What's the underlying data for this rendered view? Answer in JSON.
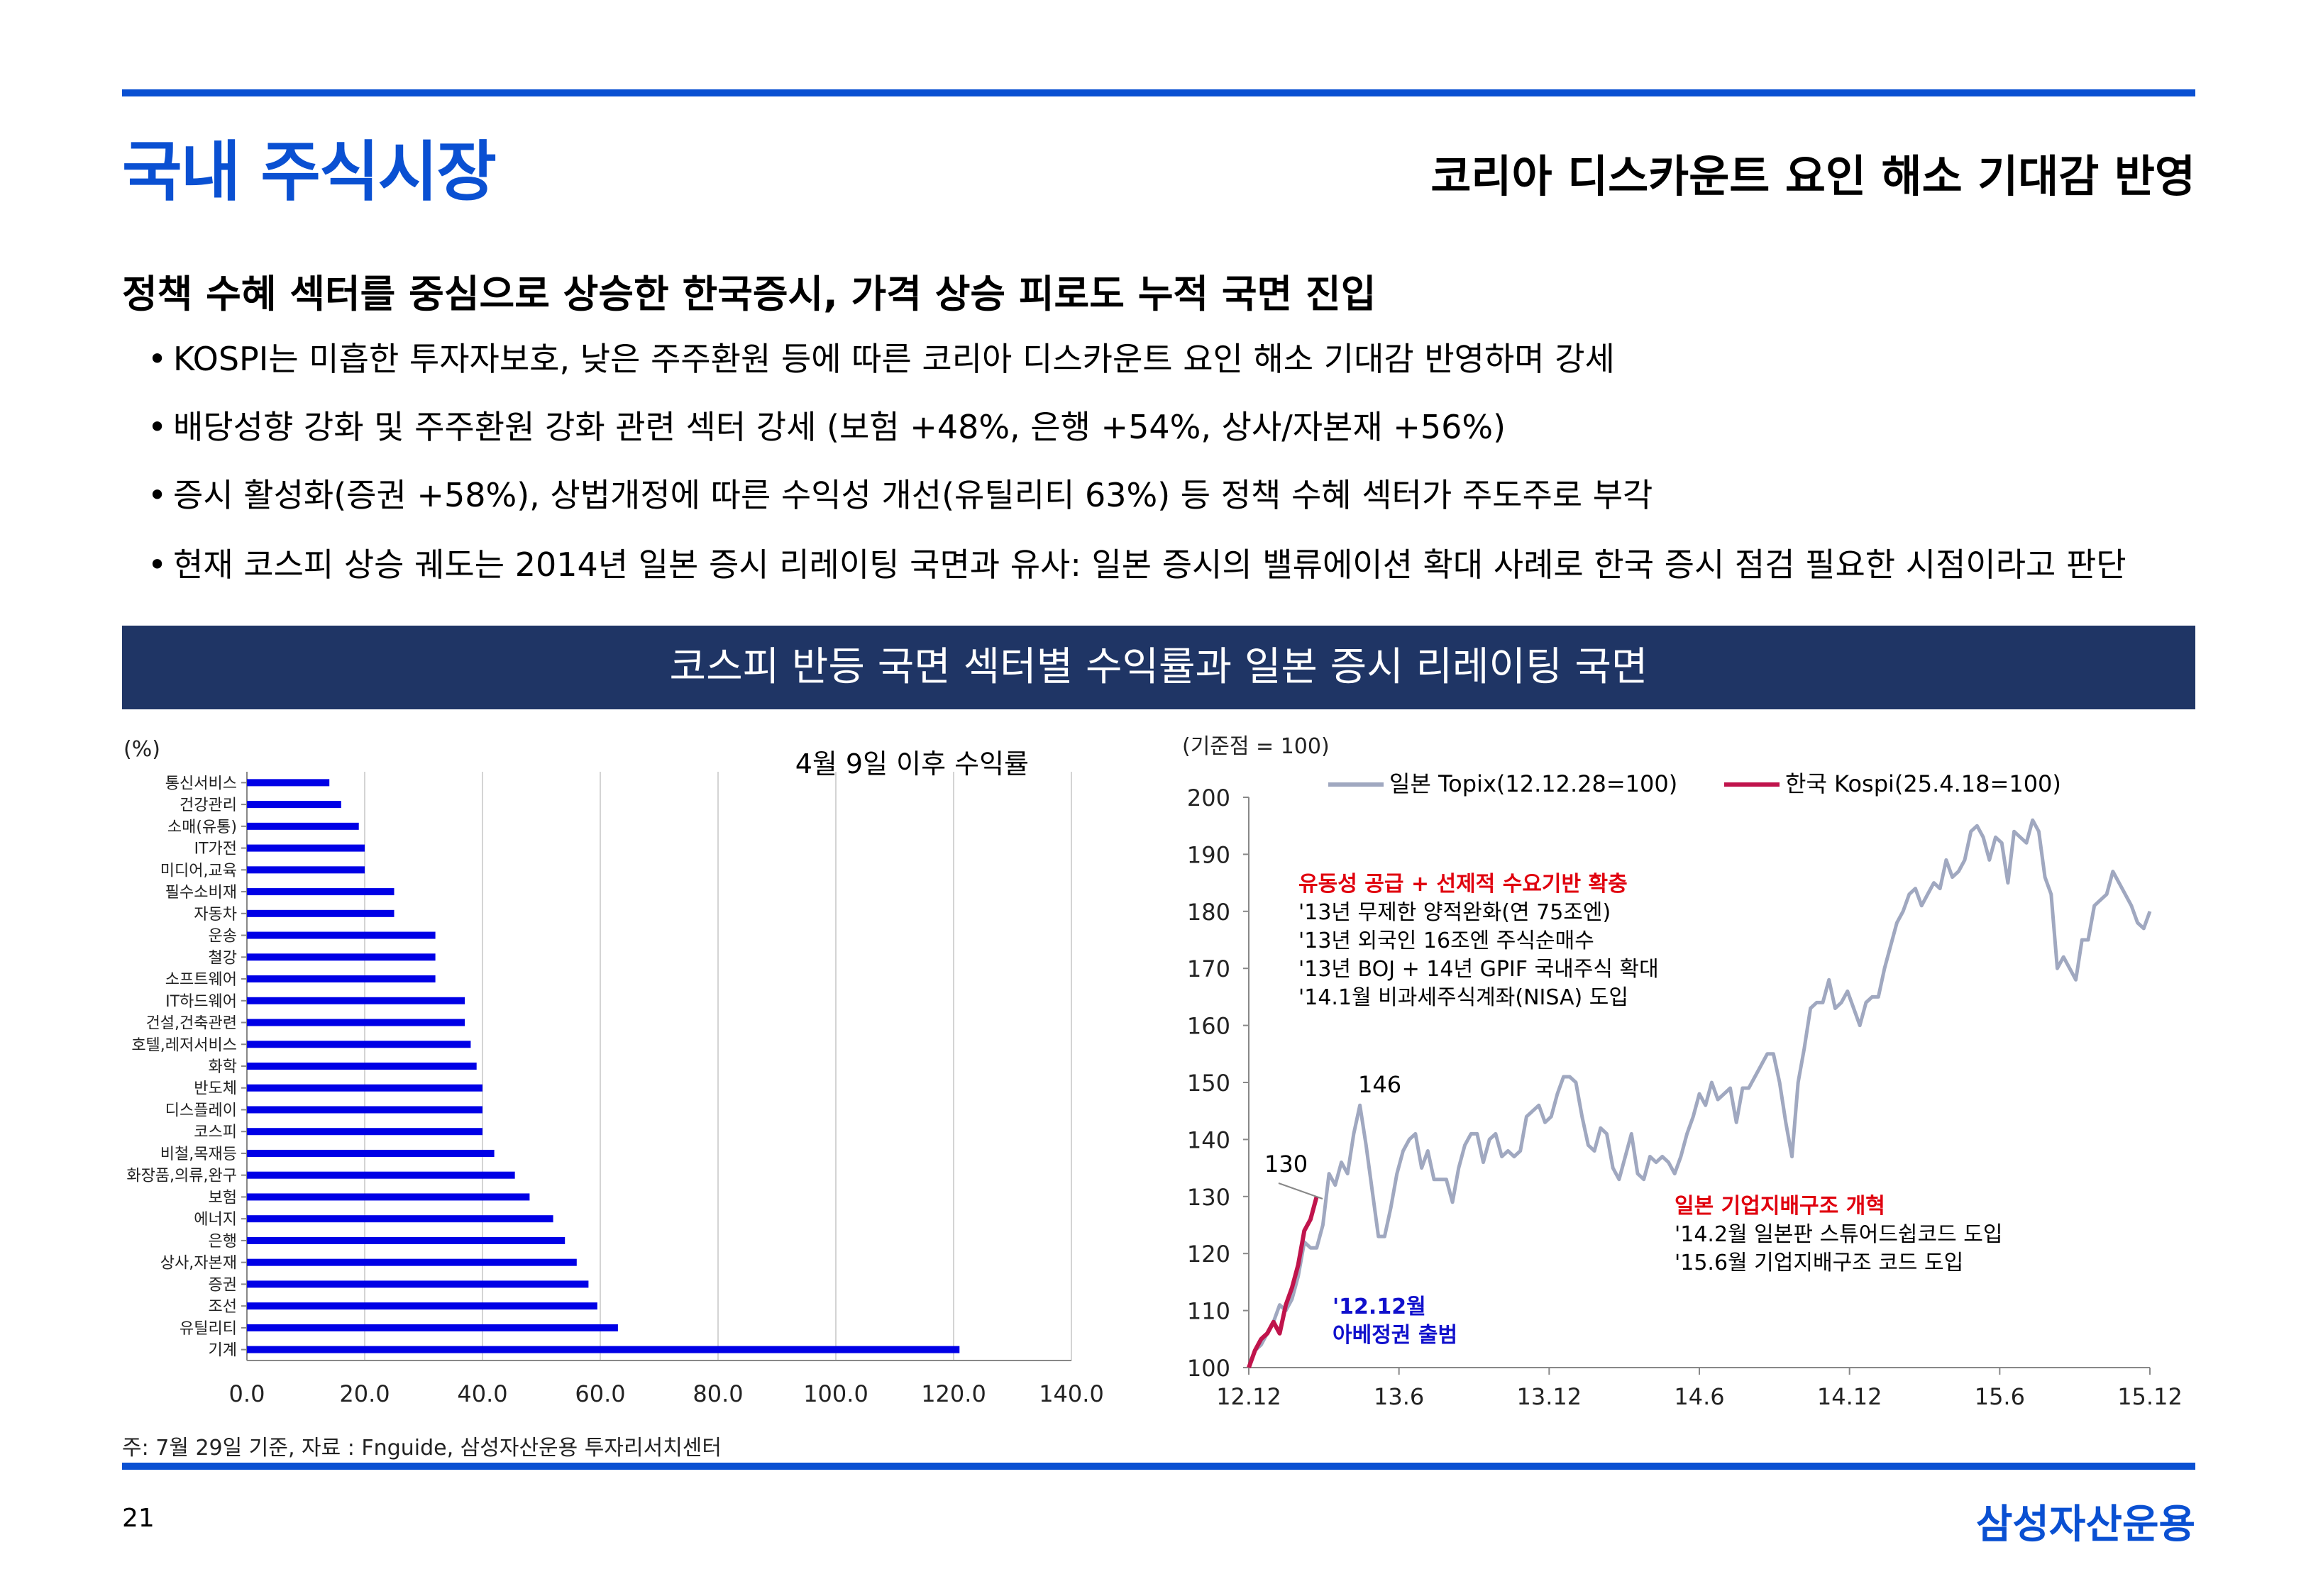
{
  "header": {
    "title": "국내 주식시장",
    "subtitle": "코리아 디스카운트 요인 해소 기대감 반영"
  },
  "section": {
    "heading": "정책 수혜 섹터를 중심으로 상승한 한국증시, 가격 상승 피로도 누적 국면 진입",
    "bullets": [
      "KOSPI는 미흡한 투자자보호, 낮은 주주환원 등에 따른 코리아 디스카운트 요인 해소 기대감 반영하며 강세",
      "배당성향 강화 및 주주환원 강화 관련 섹터 강세 (보험 +48%, 은행 +54%, 상사/자본재 +56%)",
      "증시 활성화(증권 +58%), 상법개정에 따른 수익성 개선(유틸리티 63%) 등 정책 수혜 섹터가 주도주로 부각",
      "현재 코스피 상승 궤도는 2014년 일본 증시 리레이팅 국면과 유사: 일본 증시의 밸류에이션  확대 사례로 한국 증시 점검 필요한 시점이라고 판단"
    ]
  },
  "banner": {
    "title": "코스피 반등 국면 섹터별 수익률과 일본 증시 리레이팅 국면"
  },
  "chart_data": [
    {
      "type": "bar",
      "orientation": "horizontal",
      "title": "4월 9일 이후 수익률",
      "ylabel_unit": "(%)",
      "categories": [
        "통신서비스",
        "건강관리",
        "소매(유통)",
        "IT가전",
        "미디어,교육",
        "필수소비재",
        "자동차",
        "운송",
        "철강",
        "소프트웨어",
        "IT하드웨어",
        "건설,건축관련",
        "호텔,레저서비스",
        "화학",
        "반도체",
        "디스플레이",
        "코스피",
        "비철,목재등",
        "화장품,의류,완구",
        "보험",
        "에너지",
        "은행",
        "상사,자본재",
        "증권",
        "조선",
        "유틸리티",
        "기계"
      ],
      "values": [
        14,
        16,
        19,
        20,
        20,
        25,
        25,
        32,
        32,
        32,
        37,
        37,
        38,
        39,
        40,
        40,
        40,
        42,
        45.5,
        48,
        52,
        54,
        56,
        58,
        59.5,
        63,
        121
      ],
      "xlim": [
        0,
        140
      ],
      "x_ticks": [
        "0.0",
        "20.0",
        "40.0",
        "60.0",
        "80.0",
        "100.0",
        "120.0",
        "140.0"
      ],
      "grid": "vertical",
      "color": "#0000e6"
    },
    {
      "type": "line",
      "unit_label": "(기준점 = 100)",
      "ylim": [
        100,
        200
      ],
      "y_ticks": [
        "100",
        "110",
        "120",
        "130",
        "140",
        "150",
        "160",
        "170",
        "180",
        "190",
        "200"
      ],
      "x_ticks": [
        "12.12",
        "13.6",
        "13.12",
        "14.6",
        "14.12",
        "15.6",
        "15.12"
      ],
      "legend_position": "top",
      "series": [
        {
          "name": "일본 Topix(12.12.28=100)",
          "color": "#a0a8c0",
          "values": [
            100,
            103,
            104,
            106,
            108,
            111,
            110,
            112,
            116,
            122,
            121,
            121,
            125,
            134,
            132,
            136,
            134,
            141,
            146,
            139,
            131,
            123,
            123,
            128,
            134,
            138,
            140,
            141,
            135,
            138,
            133,
            133,
            133,
            129,
            135,
            139,
            141,
            141,
            136,
            140,
            141,
            137,
            138,
            137,
            138,
            144,
            145,
            146,
            143,
            144,
            148,
            151,
            151,
            150,
            144,
            139,
            138,
            142,
            141,
            135,
            133,
            137,
            141,
            134,
            133,
            137,
            136,
            137,
            136,
            134,
            137,
            141,
            144,
            148,
            146,
            150,
            147,
            148,
            149,
            143,
            149,
            149,
            151,
            153,
            155,
            155,
            150,
            143,
            137,
            150,
            156,
            163,
            164,
            164,
            168,
            163,
            164,
            166,
            163,
            160,
            164,
            165,
            165,
            170,
            174,
            178,
            180,
            183,
            184,
            181,
            183,
            185,
            184,
            189,
            186,
            187,
            189,
            194,
            195,
            193,
            189,
            193,
            192,
            185,
            194,
            193,
            192,
            196,
            194,
            186,
            183,
            170,
            172,
            170,
            168,
            175,
            175,
            181,
            182,
            183,
            187,
            185,
            183,
            181,
            178,
            177,
            180
          ]
        },
        {
          "name": "한국 Kospi(25.4.18=100)",
          "color": "#c0144c",
          "values": [
            100,
            103,
            105,
            106,
            108,
            106,
            111,
            114,
            118,
            124,
            126,
            130
          ]
        }
      ],
      "annotations": [
        {
          "text": "130",
          "color": "#000000"
        },
        {
          "text": "146",
          "color": "#000000"
        },
        {
          "lines": [
            "유동성 공급 + 선제적 수요기반 확충"
          ],
          "color": "#e0000e"
        },
        {
          "lines": [
            "'13년 무제한 양적완화(연 75조엔)",
            "'13년 외국인 16조엔 주식순매수",
            " '13년 BOJ + 14년 GPIF 국내주식 확대",
            "'14.1월 비과세주식계좌(NISA) 도입"
          ],
          "color": "#000000"
        },
        {
          "lines": [
            "일본 기업지배구조 개혁"
          ],
          "color": "#e0000e"
        },
        {
          "lines": [
            "'14.2월 일본판 스튜어드쉽코드 도입",
            "'15.6월 기업지배구조 코드 도입"
          ],
          "color": "#000000"
        },
        {
          "lines": [
            "'12.12월",
            "아베정권 출범"
          ],
          "color": "#1010cc"
        }
      ]
    }
  ],
  "footer": {
    "source": "주: 7월 29일 기준, 자료 : Fnguide, 삼성자산운용 투자리서치센터",
    "page_number": "21",
    "logo": "삼성자산운용"
  }
}
